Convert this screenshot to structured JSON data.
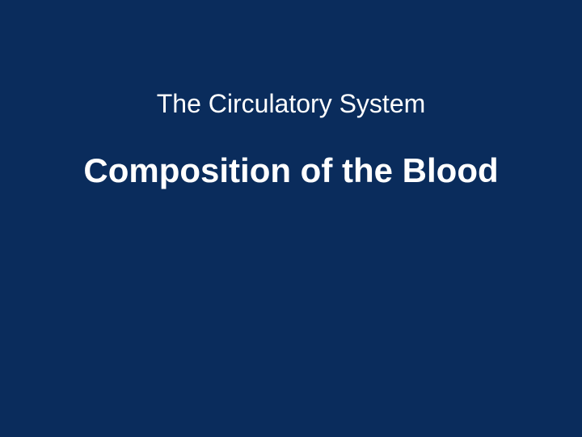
{
  "slide": {
    "background_color": "#0a2c5c",
    "text_color": "#ffffff",
    "subtitle": {
      "text": "The Circulatory System",
      "font_size": 32,
      "font_weight": "normal"
    },
    "title": {
      "text": "Composition of the Blood",
      "font_size": 42,
      "font_weight": "bold"
    }
  }
}
